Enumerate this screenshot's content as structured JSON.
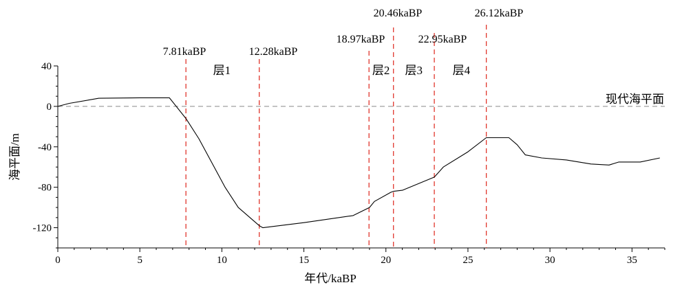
{
  "chart_data": {
    "type": "line",
    "xlabel": "年代/kaBP",
    "ylabel": "海平面/m",
    "xlim": [
      0,
      37
    ],
    "ylim": [
      -140,
      40
    ],
    "x_ticks": [
      0,
      5,
      10,
      15,
      20,
      25,
      30,
      35
    ],
    "y_ticks": [
      40,
      0,
      -40,
      -80,
      -120
    ],
    "grid": false,
    "series": [
      {
        "x": [
          0,
          0.7,
          2.5,
          5,
          6.8,
          7.81,
          8.6,
          10.2,
          11,
          12.28,
          12.5,
          15,
          18,
          19.0,
          19.3,
          20.3,
          20.46,
          21,
          22.95,
          23.5,
          25,
          26.12,
          27.5,
          28,
          28.5,
          29.5,
          31,
          32.5,
          33.6,
          34.2,
          35.5,
          36.7
        ],
        "y": [
          0,
          3,
          8,
          8.5,
          8.5,
          -12,
          -32,
          -80,
          -100,
          -118,
          -120,
          -115,
          -108,
          -100,
          -94,
          -85,
          -84,
          -83,
          -70,
          -60,
          -45,
          -31,
          -31,
          -38,
          -48,
          -51,
          -53,
          -57,
          -58,
          -55,
          -55,
          -51
        ]
      }
    ],
    "reference_line": {
      "y": 0,
      "label": "现代海平面",
      "color": "#888888"
    },
    "age_markers": [
      {
        "x": 7.81,
        "label": "7.81kaBP"
      },
      {
        "x": 12.28,
        "label": "12.28kaBP"
      },
      {
        "x": 18.97,
        "label": "18.97kaBP"
      },
      {
        "x": 20.46,
        "label": "20.46kaBP"
      },
      {
        "x": 22.95,
        "label": "22.95kaBP"
      },
      {
        "x": 26.12,
        "label": "26.12kaBP"
      }
    ],
    "layers": [
      {
        "label": "层1",
        "x": 10.0
      },
      {
        "label": "层2",
        "x": 19.7
      },
      {
        "label": "层3",
        "x": 21.7
      },
      {
        "label": "层4",
        "x": 24.6
      }
    ],
    "marker_color": "#e0352b",
    "line_color": "#000000"
  }
}
